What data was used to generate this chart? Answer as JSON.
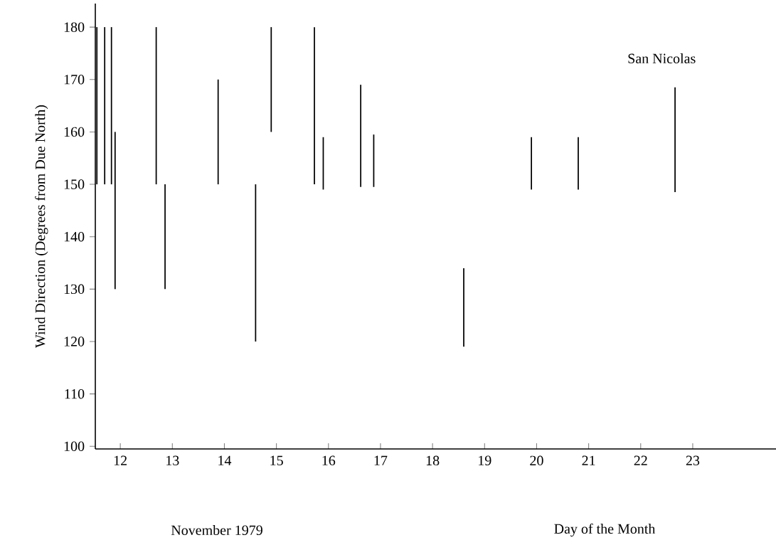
{
  "chart_data": {
    "type": "bar",
    "title": "San Nicolas",
    "xlabel": "Day of the Month",
    "ylabel": "Wind Direction (Degrees from Due North)",
    "annotations": [
      "November 1979"
    ],
    "x": [
      11.55,
      11.7,
      11.83,
      11.9,
      12.69,
      12.86,
      13.88,
      14.6,
      14.9,
      15.73,
      15.9,
      16.62,
      16.87,
      18.6,
      19.9,
      20.8,
      22.66
    ],
    "base": [
      150,
      150,
      150,
      130,
      150,
      130,
      150,
      120,
      160,
      150,
      149,
      149.5,
      149.5,
      119,
      149,
      149,
      148.5
    ],
    "values": [
      30,
      30,
      30,
      30,
      30,
      20,
      20,
      30,
      20,
      30,
      10,
      19.5,
      10,
      15,
      10,
      10,
      20
    ],
    "color": "#000000",
    "xlim": [
      11.52,
      24.6
    ],
    "ylim": [
      99.5,
      184.5
    ],
    "xticks": [
      12,
      13,
      14,
      15,
      16,
      17,
      18,
      19,
      20,
      21,
      22,
      23
    ],
    "yticks": [
      100,
      110,
      120,
      130,
      140,
      150,
      160,
      170,
      180
    ],
    "grid": false
  }
}
